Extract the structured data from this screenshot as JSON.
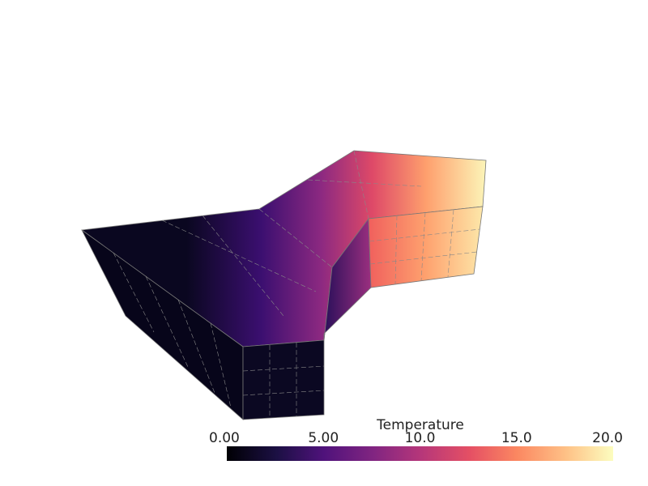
{
  "scalar_bar": {
    "title": "Temperature",
    "range": [
      0,
      20
    ],
    "ticks": [
      {
        "value": 0,
        "label": "0.00"
      },
      {
        "value": 5,
        "label": "5.00"
      },
      {
        "value": 10,
        "label": "10.0"
      },
      {
        "value": 15,
        "label": "15.0"
      },
      {
        "value": 20,
        "label": "20.0"
      }
    ]
  }
}
